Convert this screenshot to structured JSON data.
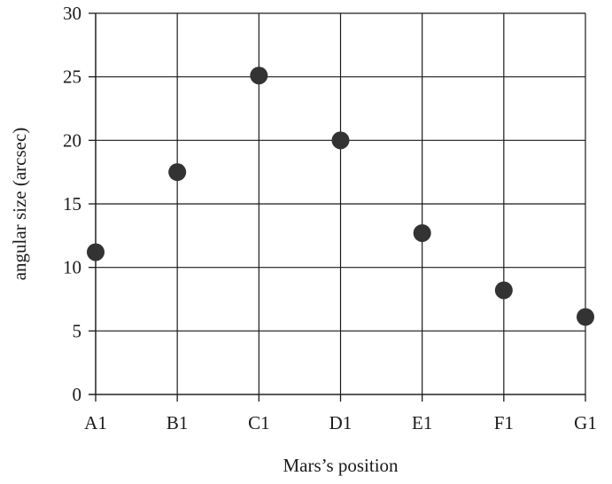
{
  "chart_data": {
    "type": "scatter",
    "title": "",
    "xlabel": "Mars’s position",
    "ylabel": "angular size (arcsec)",
    "categories": [
      "A1",
      "B1",
      "C1",
      "D1",
      "E1",
      "F1",
      "G1"
    ],
    "values": [
      11.2,
      17.5,
      25.1,
      20.0,
      12.7,
      8.2,
      6.1
    ],
    "ylim": [
      0,
      30
    ],
    "yticks": [
      0,
      5,
      10,
      15,
      20,
      25,
      30
    ],
    "grid": true,
    "marker_color": "#333333"
  }
}
